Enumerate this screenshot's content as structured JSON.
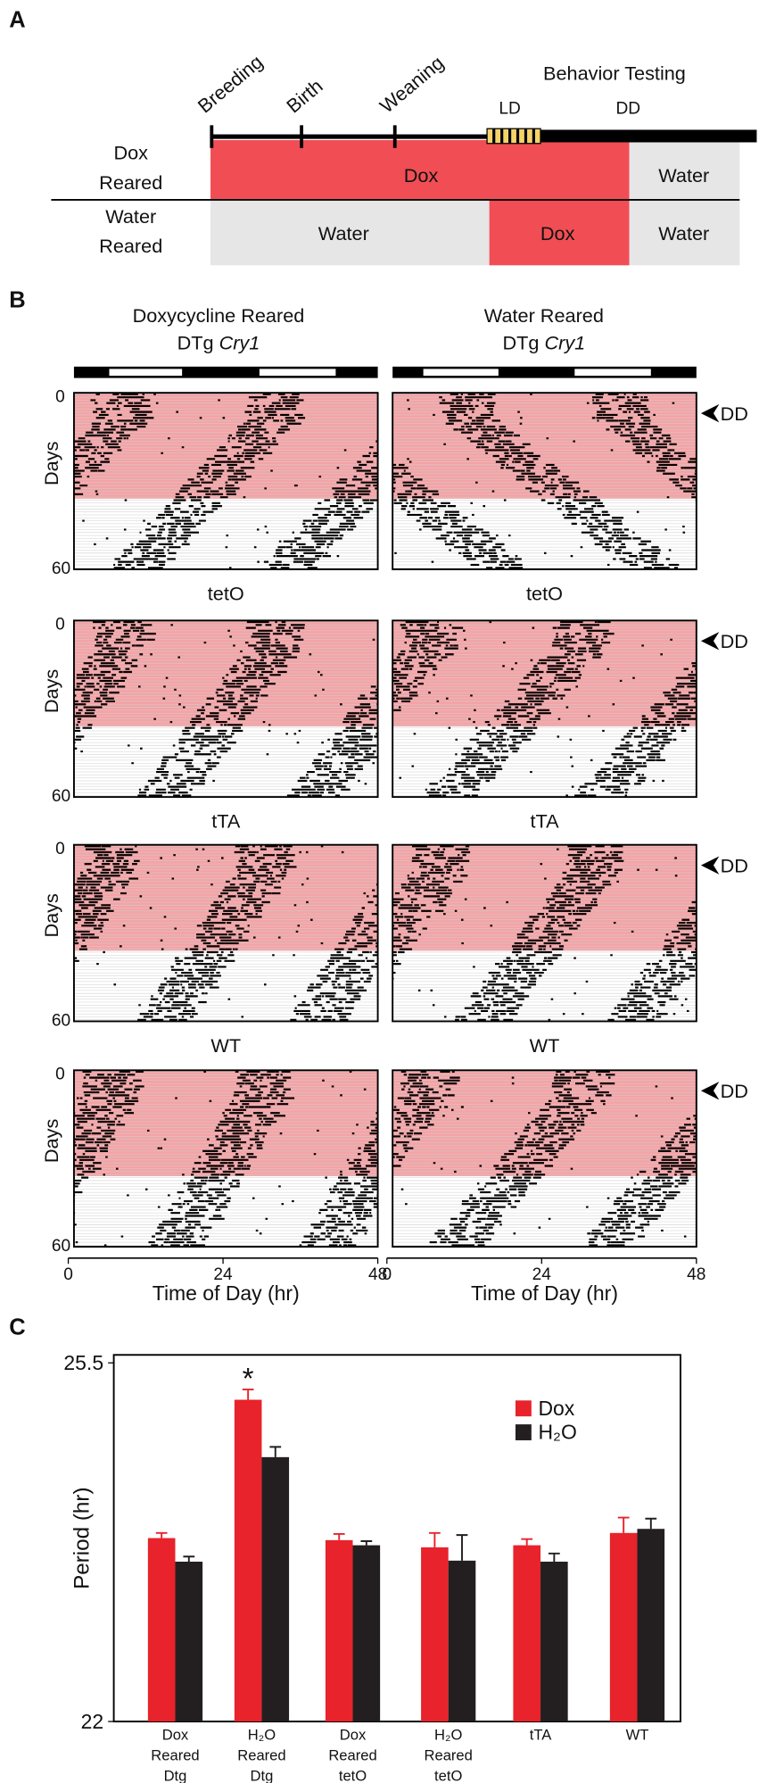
{
  "panel_a": {
    "label": "A",
    "milestones": [
      "Breeding",
      "Birth",
      "Weaning"
    ],
    "testing": "Behavior Testing",
    "phases": [
      "LD",
      "DD"
    ],
    "rows": [
      {
        "label": [
          "Dox",
          "Reared"
        ],
        "segments": [
          "Dox",
          "Water"
        ]
      },
      {
        "label": [
          "Water",
          "Reared"
        ],
        "segments": [
          "Water",
          "Dox",
          "Water"
        ]
      }
    ]
  },
  "panel_b": {
    "label": "B",
    "columns": [
      {
        "title": "Doxycycline Reared",
        "genotype": "DTg",
        "gene": "Cry1"
      },
      {
        "title": "Water Reared",
        "genotype": "DTg",
        "gene": "Cry1"
      }
    ],
    "rows": [
      "tetO",
      "tTA",
      "WT"
    ],
    "y_label": "Days",
    "y_ticks": [
      "0",
      "60"
    ],
    "marker": "DD",
    "x_ticks": [
      "0",
      "24",
      "48"
    ],
    "x_label": "Time of Day (hr)"
  },
  "panel_c_label": "C",
  "chart_data": {
    "type": "bar",
    "y_label": "Period (hr)",
    "categories": [
      [
        "Dox",
        "Reared",
        "Dtg"
      ],
      [
        "H₂O",
        "Reared",
        "Dtg"
      ],
      [
        "Dox",
        "Reared",
        "tetO"
      ],
      [
        "H₂O",
        "Reared",
        "tetO"
      ],
      [
        "tTA"
      ],
      [
        "WT"
      ]
    ],
    "series": [
      {
        "name": "Dox",
        "color": "#e8232b",
        "values": [
          23.79,
          25.14,
          23.77,
          23.7,
          23.72,
          23.84
        ],
        "errors": [
          0.05,
          0.1,
          0.06,
          0.14,
          0.06,
          0.15
        ]
      },
      {
        "name": "H₂O",
        "color": "#231f20",
        "values": [
          23.56,
          24.58,
          23.72,
          23.57,
          23.56,
          23.88
        ],
        "errors": [
          0.05,
          0.1,
          0.04,
          0.25,
          0.08,
          0.1
        ]
      }
    ],
    "ylim": [
      22,
      25.5
    ],
    "yticks": [
      22,
      25.5
    ],
    "annotation": "*",
    "legend": "upper right"
  }
}
